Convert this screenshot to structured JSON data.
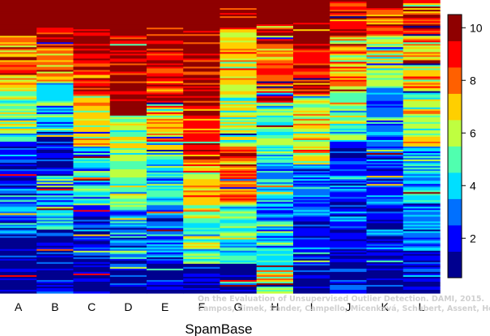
{
  "chart_data": {
    "type": "heatmap",
    "title": "",
    "xlabel": "SpamBase",
    "ylabel": "",
    "columns": [
      "A",
      "B",
      "C",
      "D",
      "E",
      "F",
      "G",
      "H",
      "I",
      "J",
      "K",
      "L"
    ],
    "value_range": [
      0.5,
      10.5
    ],
    "colorbar": {
      "levels": [
        1,
        2,
        3,
        4,
        5,
        6,
        7,
        8,
        9,
        10
      ],
      "tick_labels": [
        "2",
        "4",
        "6",
        "8",
        "10"
      ],
      "tick_values": [
        2,
        4,
        6,
        8,
        10
      ],
      "colors": [
        "#00008F",
        "#0000FF",
        "#0070FF",
        "#00DFFF",
        "#50FFAF",
        "#BFFF40",
        "#FFCF00",
        "#FF6000",
        "#FF0000",
        "#8F0000"
      ]
    },
    "column_profiles": [
      {
        "column": "A",
        "top_rank_fraction": 0.06,
        "zones": [
          [
            0.0,
            10
          ],
          [
            0.12,
            8
          ],
          [
            0.3,
            5
          ],
          [
            0.48,
            2
          ],
          [
            0.62,
            3
          ],
          [
            0.8,
            1
          ]
        ]
      },
      {
        "column": "B",
        "top_rank_fraction": 0.09,
        "zones": [
          [
            0.0,
            10
          ],
          [
            0.14,
            8
          ],
          [
            0.28,
            4
          ],
          [
            0.45,
            2
          ],
          [
            0.6,
            4
          ],
          [
            0.78,
            1
          ]
        ]
      },
      {
        "column": "C",
        "top_rank_fraction": 0.1,
        "zones": [
          [
            0.0,
            10
          ],
          [
            0.15,
            9
          ],
          [
            0.32,
            7
          ],
          [
            0.5,
            4
          ],
          [
            0.7,
            2
          ],
          [
            0.88,
            1
          ]
        ]
      },
      {
        "column": "D",
        "top_rank_fraction": 0.12,
        "zones": [
          [
            0.0,
            10
          ],
          [
            0.2,
            10
          ],
          [
            0.4,
            6
          ],
          [
            0.55,
            5
          ],
          [
            0.72,
            3
          ],
          [
            0.88,
            1
          ]
        ]
      },
      {
        "column": "E",
        "top_rank_fraction": 0.09,
        "zones": [
          [
            0.0,
            10
          ],
          [
            0.18,
            9
          ],
          [
            0.35,
            7
          ],
          [
            0.52,
            4
          ],
          [
            0.7,
            3
          ],
          [
            0.9,
            1
          ]
        ]
      },
      {
        "column": "F",
        "top_rank_fraction": 0.1,
        "zones": [
          [
            0.0,
            10
          ],
          [
            0.16,
            10
          ],
          [
            0.35,
            9
          ],
          [
            0.55,
            7
          ],
          [
            0.72,
            5
          ],
          [
            0.9,
            1
          ]
        ]
      },
      {
        "column": "G",
        "top_rank_fraction": 0.02,
        "zones": [
          [
            0.0,
            10
          ],
          [
            0.1,
            7
          ],
          [
            0.3,
            6
          ],
          [
            0.5,
            8
          ],
          [
            0.7,
            5
          ],
          [
            0.9,
            1
          ]
        ]
      },
      {
        "column": "H",
        "top_rank_fraction": 0.08,
        "zones": [
          [
            0.0,
            10
          ],
          [
            0.15,
            8
          ],
          [
            0.35,
            5
          ],
          [
            0.55,
            3
          ],
          [
            0.75,
            4
          ],
          [
            0.92,
            6
          ]
        ]
      },
      {
        "column": "I",
        "top_rank_fraction": 0.07,
        "zones": [
          [
            0.0,
            10
          ],
          [
            0.15,
            9
          ],
          [
            0.32,
            6
          ],
          [
            0.55,
            3
          ],
          [
            0.72,
            2
          ],
          [
            0.88,
            1
          ]
        ]
      },
      {
        "column": "J",
        "top_rank_fraction": 0.0,
        "zones": [
          [
            0.0,
            9
          ],
          [
            0.12,
            7
          ],
          [
            0.3,
            5
          ],
          [
            0.48,
            2
          ],
          [
            0.65,
            2
          ],
          [
            0.85,
            1
          ]
        ]
      },
      {
        "column": "K",
        "top_rank_fraction": 0.03,
        "zones": [
          [
            0.0,
            8
          ],
          [
            0.12,
            6
          ],
          [
            0.3,
            3
          ],
          [
            0.5,
            2
          ],
          [
            0.7,
            2
          ],
          [
            0.85,
            1
          ]
        ]
      },
      {
        "column": "L",
        "top_rank_fraction": 0.0,
        "zones": [
          [
            0.0,
            9
          ],
          [
            0.12,
            7
          ],
          [
            0.3,
            6
          ],
          [
            0.5,
            4
          ],
          [
            0.7,
            3
          ],
          [
            0.85,
            2
          ]
        ]
      }
    ]
  },
  "watermark": {
    "line1": "On the Evaluation of Unsupervised Outlier Detection. DAMI, 2015.",
    "line2": "Campos, Zimek, Sander, Campello, Micenková, Schubert, Assent, Houle"
  }
}
